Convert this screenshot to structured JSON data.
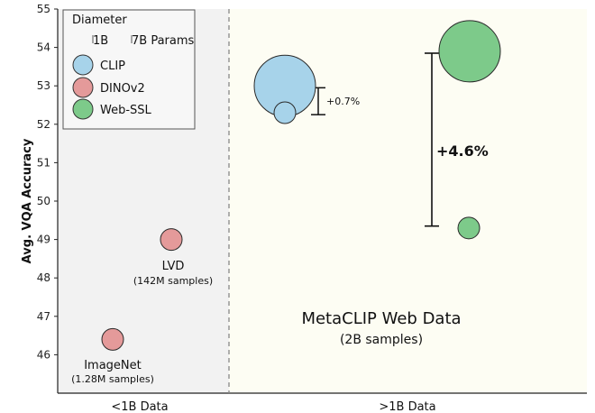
{
  "chart_data": {
    "type": "scatter",
    "ylabel": "Avg. VQA Accuracy",
    "ylim": [
      45,
      55
    ],
    "yticks": [
      46,
      47,
      48,
      49,
      50,
      51,
      52,
      53,
      54,
      55
    ],
    "grid": false,
    "regions": [
      {
        "label": "<1B Data",
        "fill": "#f2f2f2"
      },
      {
        "label": ">1B Data",
        "fill": "#fdfdf3"
      }
    ],
    "legend": {
      "title": "Diameter",
      "size_labels": [
        "1B",
        "7B Params"
      ],
      "position": "top-left",
      "entries": [
        {
          "name": "CLIP",
          "color": "#a7d3ea"
        },
        {
          "name": "DINOv2",
          "color": "#e49a9a"
        },
        {
          "name": "Web-SSL",
          "color": "#7dca8a"
        }
      ]
    },
    "points": [
      {
        "series": "DINOv2",
        "region": "<1B Data",
        "y": 46.4,
        "size": "small",
        "label": "ImageNet",
        "sublabel": "(1.28M samples)"
      },
      {
        "series": "DINOv2",
        "region": "<1B Data",
        "y": 49.0,
        "size": "small",
        "label": "LVD",
        "sublabel": "(142M samples)"
      },
      {
        "series": "CLIP",
        "region": ">1B Data",
        "y": 53.0,
        "size": "large"
      },
      {
        "series": "CLIP",
        "region": ">1B Data",
        "y": 52.3,
        "size": "small"
      },
      {
        "series": "Web-SSL",
        "region": ">1B Data",
        "y": 53.9,
        "size": "large"
      },
      {
        "series": "Web-SSL",
        "region": ">1B Data",
        "y": 49.3,
        "size": "small"
      }
    ],
    "annotations": {
      "clip_gain": "+0.7%",
      "webssl_gain": "+4.6%",
      "region_title": "MetaCLIP Web Data",
      "region_subtitle": "(2B samples)"
    },
    "colors": {
      "clip": "#a7d3ea",
      "dinov2": "#e49a9a",
      "webssl": "#7dca8a",
      "divider": "#888888",
      "axis": "#222222"
    }
  }
}
